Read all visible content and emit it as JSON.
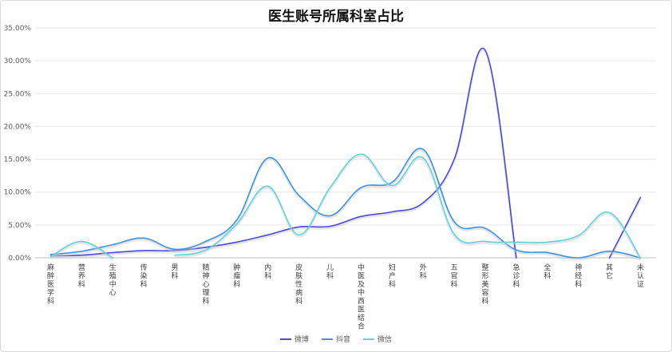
{
  "chart_data": {
    "type": "line",
    "title": "医生账号所属科室占比",
    "categories": [
      "麻醉医学科",
      "营养科",
      "生殖中心",
      "传染科",
      "男科",
      "精神心理科",
      "肿瘤科",
      "内科",
      "皮肤性病科",
      "儿科",
      "中医及中西医结合",
      "妇产科",
      "外科",
      "五官科",
      "整形美容科",
      "急诊科",
      "全科",
      "神经科",
      "其它",
      "未认证"
    ],
    "yticks": [
      "0.00%",
      "5.00%",
      "10.00%",
      "15.00%",
      "20.00%",
      "25.00%",
      "30.00%",
      "35.00%"
    ],
    "ylim": [
      0,
      35
    ],
    "grid": true,
    "legend_position": "bottom",
    "series": [
      {
        "name": "微博",
        "color": "#4a4ad8",
        "values": [
          0.3,
          0.4,
          0.8,
          1.1,
          1.1,
          1.6,
          2.4,
          3.5,
          4.7,
          4.8,
          6.3,
          7.0,
          8.4,
          15.0,
          31.6,
          0.0,
          null,
          null,
          0.0,
          9.2
        ]
      },
      {
        "name": "抖音",
        "color": "#3d93e0",
        "values": [
          0.5,
          1.0,
          2.0,
          3.0,
          1.3,
          2.5,
          5.8,
          15.2,
          9.5,
          6.4,
          10.7,
          11.5,
          16.5,
          5.5,
          4.5,
          1.2,
          0.8,
          0.0,
          1.0,
          0.0
        ]
      },
      {
        "name": "微信",
        "color": "#5fd2df",
        "values": [
          0.2,
          2.5,
          0.0,
          null,
          0.4,
          1.2,
          5.2,
          10.9,
          3.5,
          10.7,
          15.8,
          11.0,
          15.2,
          3.6,
          2.5,
          2.4,
          2.4,
          3.4,
          6.9,
          0.0
        ]
      }
    ]
  }
}
